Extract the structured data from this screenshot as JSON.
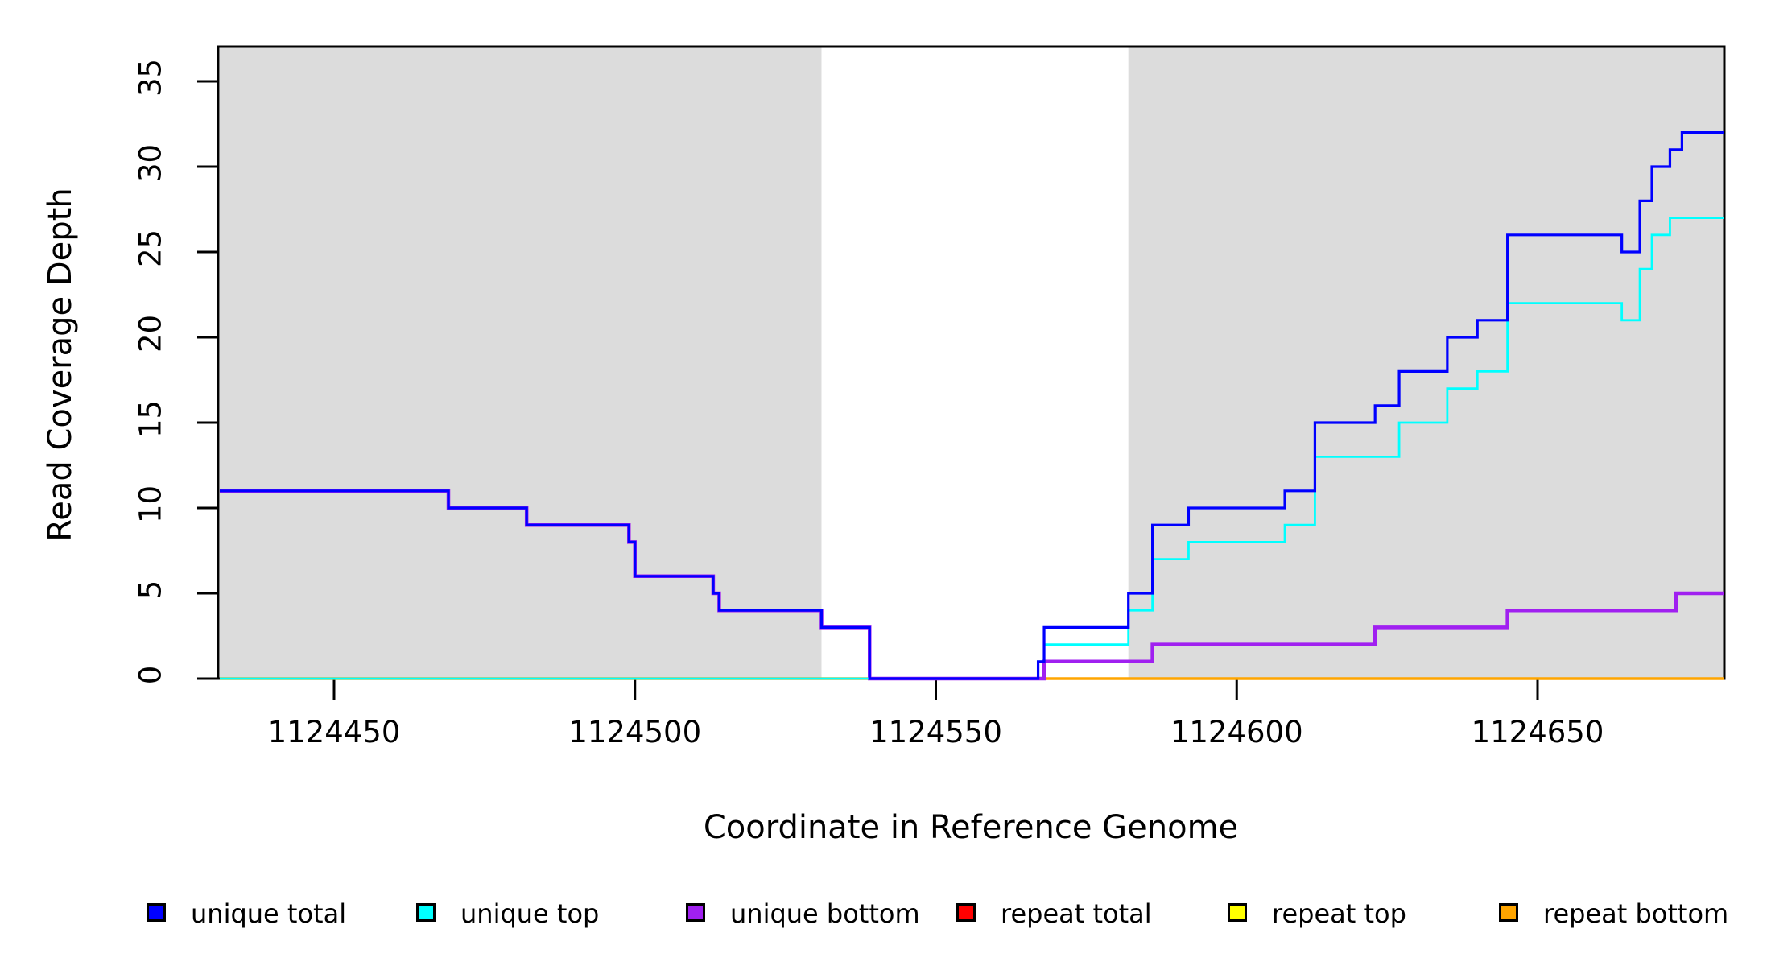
{
  "axes": {
    "x": {
      "label": "Coordinate in Reference Genome",
      "tick_labels": [
        "1124450",
        "1124500",
        "1124550",
        "1124600",
        "1124650"
      ]
    },
    "y": {
      "label": "Read Coverage Depth",
      "tick_labels": [
        "0",
        "5",
        "10",
        "15",
        "20",
        "25",
        "30",
        "35"
      ]
    }
  },
  "legend": {
    "items": [
      {
        "label": "unique total",
        "color": "#0000FF"
      },
      {
        "label": "unique top",
        "color": "#00FFFF"
      },
      {
        "label": "unique bottom",
        "color": "#A020F0"
      },
      {
        "label": "repeat total",
        "color": "#FF0000"
      },
      {
        "label": "repeat top",
        "color": "#FFFF00"
      },
      {
        "label": "repeat bottom",
        "color": "#FFA500"
      }
    ]
  },
  "colors": {
    "shaded_region": "#DCDCDC",
    "frame": "#000000",
    "background": "#FFFFFF"
  },
  "chart_data": {
    "type": "line",
    "step": "after",
    "title": "",
    "xlabel": "Coordinate in Reference Genome",
    "ylabel": "Read Coverage Depth",
    "xlim": [
      1124431,
      1124681
    ],
    "ylim": [
      0,
      37
    ],
    "x_ticks": [
      1124450,
      1124500,
      1124550,
      1124600,
      1124650
    ],
    "y_ticks": [
      0,
      5,
      10,
      15,
      20,
      25,
      30,
      35
    ],
    "grid": false,
    "legend_position": "bottom-horizontal",
    "shaded_regions": [
      {
        "x0": 1124431,
        "x1": 1124531
      },
      {
        "x0": 1124582,
        "x1": 1124681
      }
    ],
    "series": [
      {
        "name": "repeat total",
        "color": "#FF0000",
        "width": 2.5,
        "points": [
          [
            1124431,
            0
          ],
          [
            1124681,
            0
          ]
        ]
      },
      {
        "name": "repeat top",
        "color": "#FFFF00",
        "width": 2.5,
        "points": [
          [
            1124431,
            0
          ],
          [
            1124681,
            0
          ]
        ]
      },
      {
        "name": "repeat bottom",
        "color": "#FFA500",
        "width": 3.5,
        "points": [
          [
            1124431,
            0
          ],
          [
            1124681,
            0
          ]
        ]
      },
      {
        "name": "unique bottom",
        "color": "#A020F0",
        "width": 4.5,
        "points": [
          [
            1124431,
            11
          ],
          [
            1124469,
            10
          ],
          [
            1124482,
            9
          ],
          [
            1124499,
            8
          ],
          [
            1124500,
            6
          ],
          [
            1124513,
            5
          ],
          [
            1124514,
            4
          ],
          [
            1124531,
            3
          ],
          [
            1124539,
            0
          ],
          [
            1124568,
            1
          ],
          [
            1124586,
            2
          ],
          [
            1124623,
            3
          ],
          [
            1124645,
            4
          ],
          [
            1124673,
            5
          ],
          [
            1124681,
            5
          ]
        ]
      },
      {
        "name": "unique top",
        "color": "#00FFFF",
        "width": 2.8,
        "points": [
          [
            1124431,
            0
          ],
          [
            1124567,
            1
          ],
          [
            1124568,
            2
          ],
          [
            1124582,
            4
          ],
          [
            1124586,
            7
          ],
          [
            1124592,
            8
          ],
          [
            1124608,
            9
          ],
          [
            1124613,
            13
          ],
          [
            1124627,
            15
          ],
          [
            1124635,
            17
          ],
          [
            1124640,
            18
          ],
          [
            1124645,
            22
          ],
          [
            1124664,
            21
          ],
          [
            1124667,
            24
          ],
          [
            1124669,
            26
          ],
          [
            1124672,
            27
          ],
          [
            1124681,
            27
          ]
        ]
      },
      {
        "name": "unique total",
        "color": "#0000FF",
        "width": 3.2,
        "points": [
          [
            1124431,
            11
          ],
          [
            1124469,
            10
          ],
          [
            1124482,
            9
          ],
          [
            1124499,
            8
          ],
          [
            1124500,
            6
          ],
          [
            1124513,
            5
          ],
          [
            1124514,
            4
          ],
          [
            1124531,
            3
          ],
          [
            1124539,
            0
          ],
          [
            1124567,
            1
          ],
          [
            1124568,
            3
          ],
          [
            1124582,
            5
          ],
          [
            1124586,
            9
          ],
          [
            1124592,
            10
          ],
          [
            1124608,
            11
          ],
          [
            1124613,
            15
          ],
          [
            1124623,
            16
          ],
          [
            1124627,
            18
          ],
          [
            1124635,
            20
          ],
          [
            1124640,
            21
          ],
          [
            1124645,
            26
          ],
          [
            1124664,
            25
          ],
          [
            1124667,
            28
          ],
          [
            1124669,
            30
          ],
          [
            1124672,
            31
          ],
          [
            1124674,
            32
          ],
          [
            1124681,
            32
          ]
        ]
      }
    ]
  }
}
